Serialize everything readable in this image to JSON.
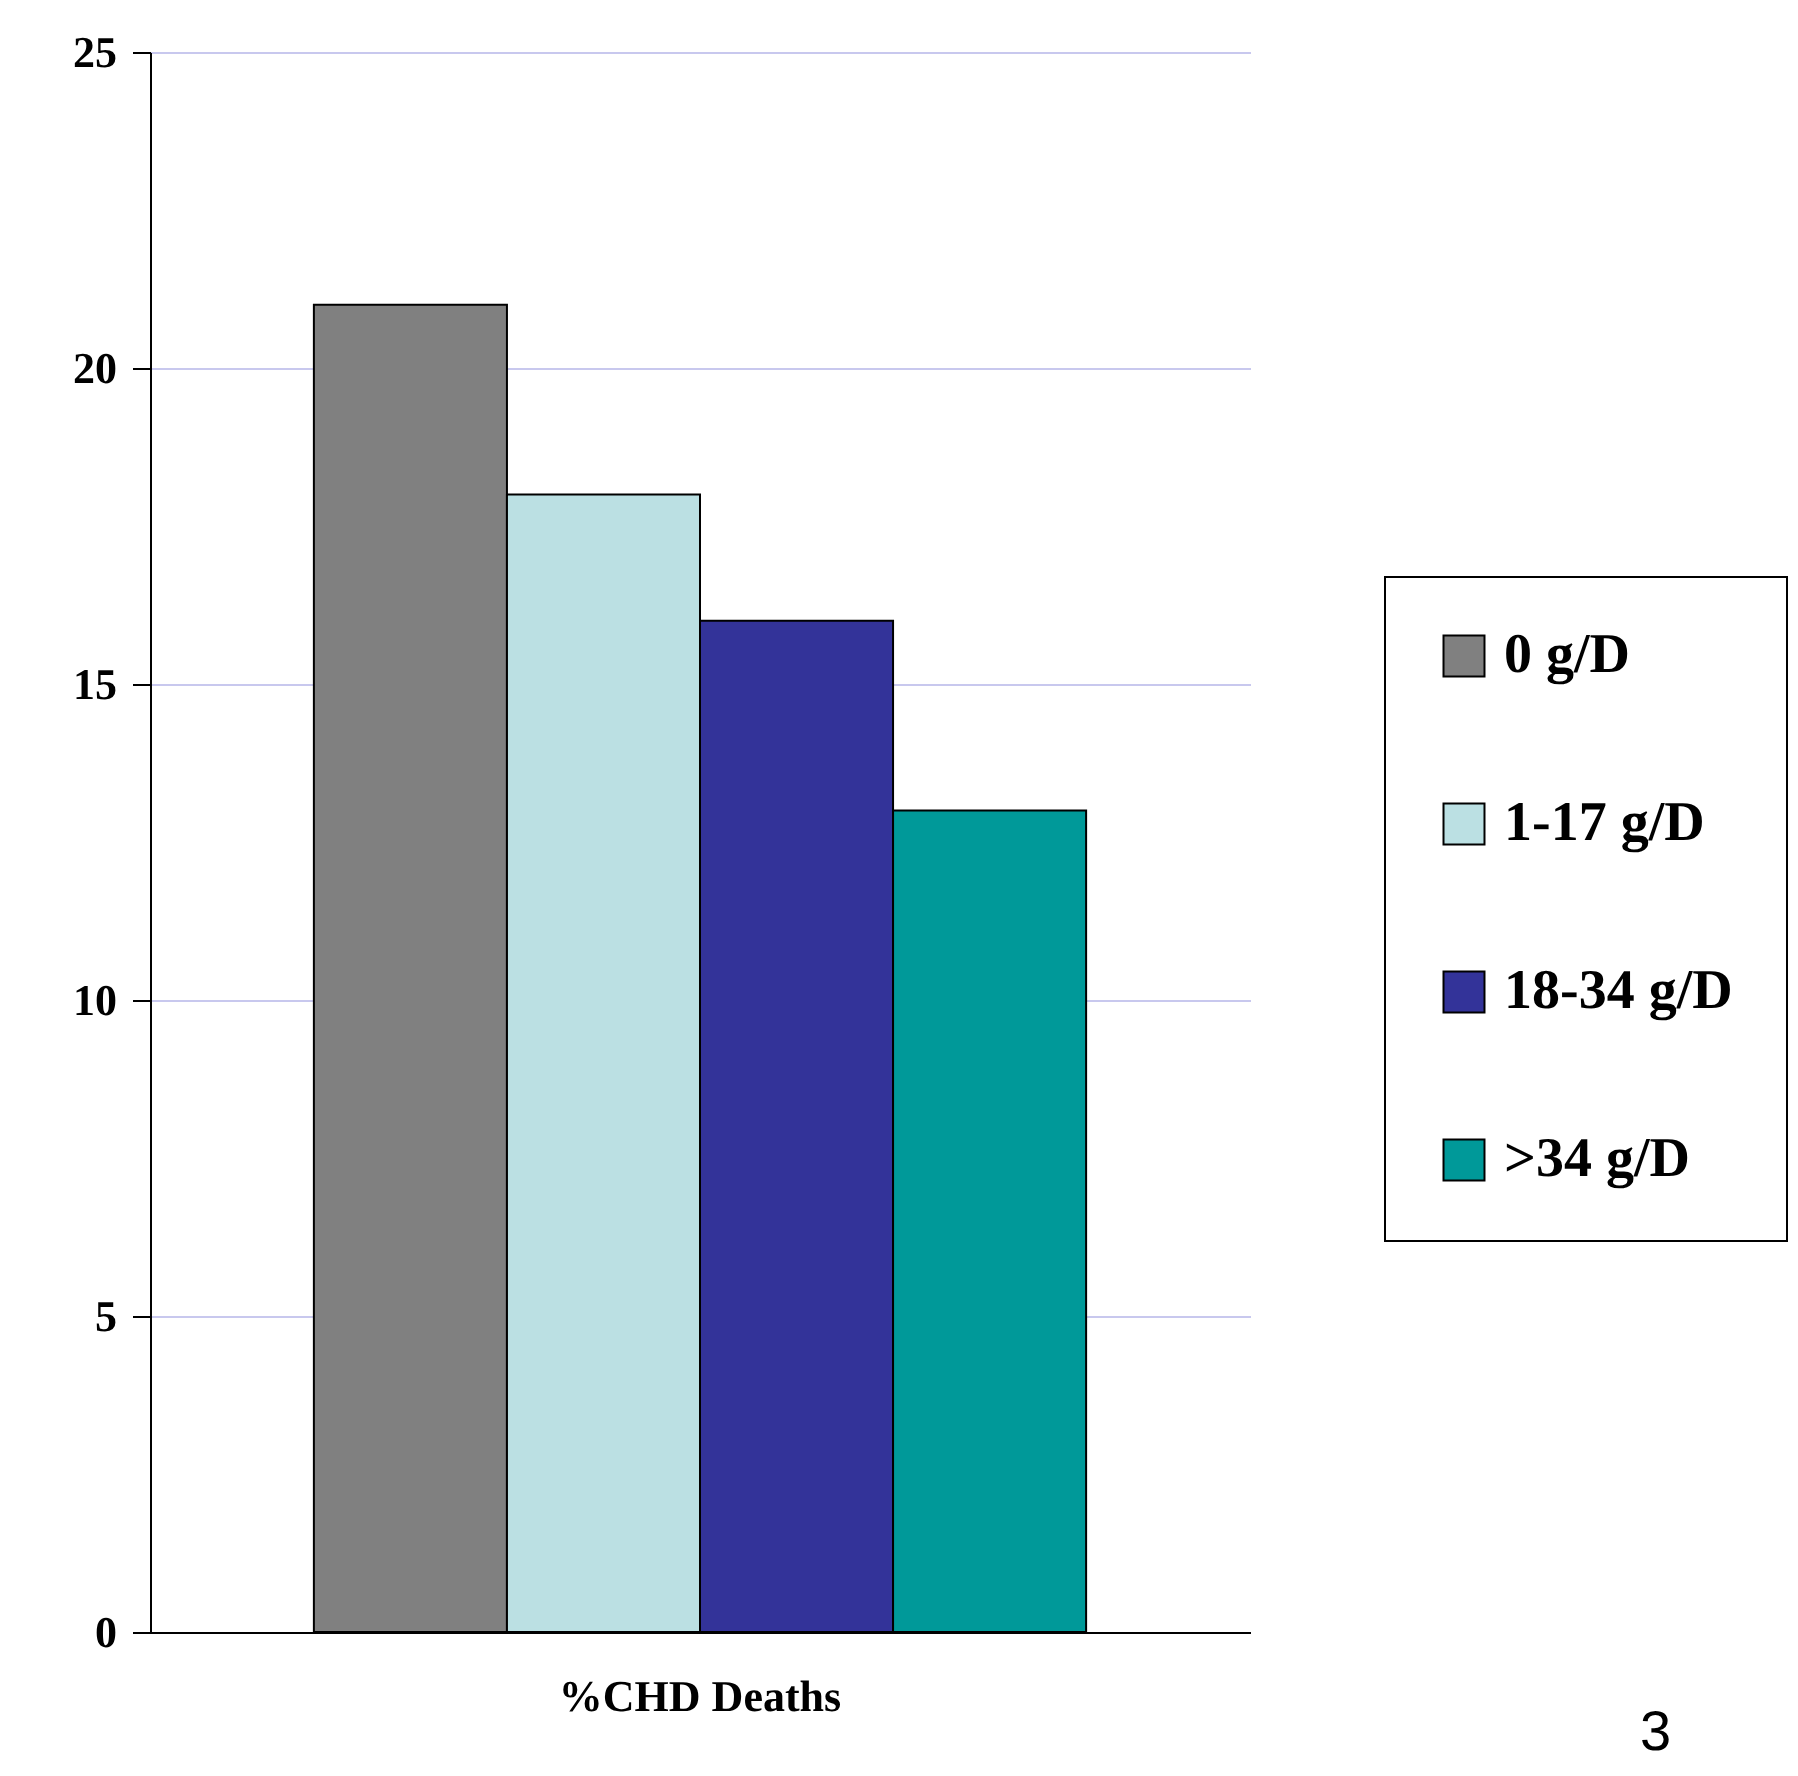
{
  "chart_data": {
    "type": "bar",
    "xlabel": null,
    "categories": [
      "%CHD Deaths"
    ],
    "series": [
      {
        "name": "0 g/D",
        "color": "#808080",
        "values": [
          21
        ]
      },
      {
        "name": "1-17 g/D",
        "color": "#bbe0e3",
        "values": [
          18
        ]
      },
      {
        "name": "18-34 g/D",
        "color": "#333399",
        "values": [
          16
        ]
      },
      {
        "name": ">34 g/D",
        "color": "#009999",
        "values": [
          13
        ]
      }
    ],
    "ylim": [
      0,
      25
    ],
    "yticks": [
      0,
      5,
      10,
      15,
      20,
      25
    ],
    "grid": "y",
    "legend": "right",
    "annotations": [
      "3"
    ]
  }
}
